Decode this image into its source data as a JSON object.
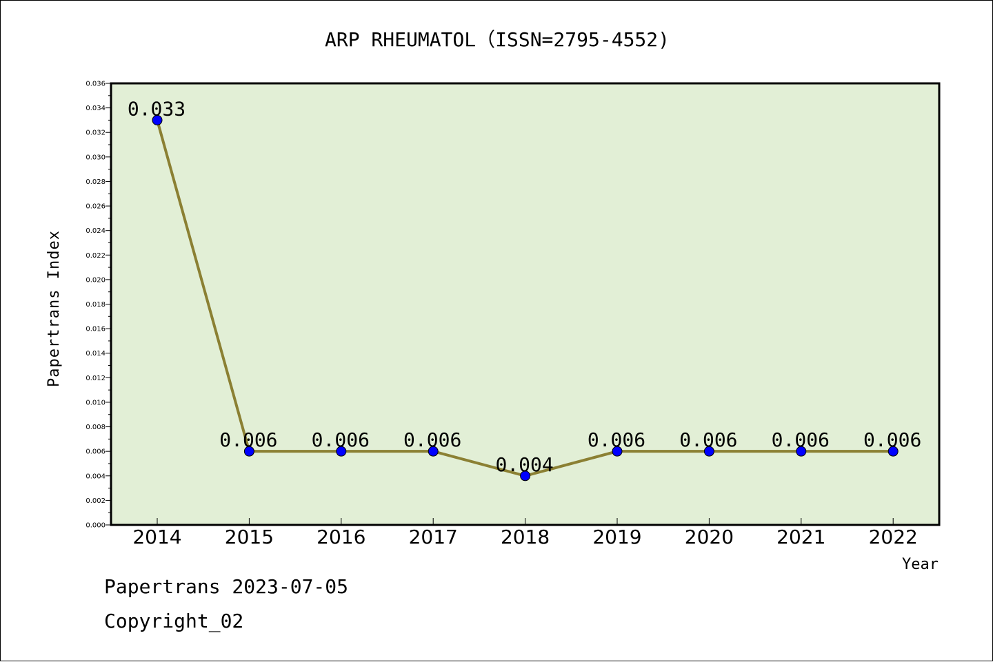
{
  "chart_data": {
    "type": "line",
    "title": "ARP RHEUMATOL（ISSN=2795-4552)",
    "xlabel": "Year",
    "ylabel": "Papertrans Index",
    "categories": [
      "2014",
      "2015",
      "2016",
      "2017",
      "2018",
      "2019",
      "2020",
      "2021",
      "2022"
    ],
    "series": [
      {
        "values": [
          0.033,
          0.006,
          0.006,
          0.006,
          0.004,
          0.006,
          0.006,
          0.006,
          0.006
        ],
        "labels": [
          "0.033",
          "0.006",
          "0.006",
          "0.006",
          "0.004",
          "0.006",
          "0.006",
          "0.006",
          "0.006"
        ],
        "line_color": "#8b8033",
        "marker_color": "#0000ff"
      }
    ],
    "ylim": [
      0,
      0.036
    ],
    "yticks": [
      "0.000",
      "0.002",
      "0.004",
      "0.006",
      "0.008",
      "0.010",
      "0.012",
      "0.014",
      "0.016",
      "0.018",
      "0.020",
      "0.022",
      "0.024",
      "0.026",
      "0.028",
      "0.030",
      "0.032",
      "0.034",
      "0.036"
    ],
    "grid": false,
    "plot_background": "#e2efd6"
  },
  "footer": {
    "line1": "Papertrans 2023-07-05",
    "line2": "Copyright_02"
  }
}
